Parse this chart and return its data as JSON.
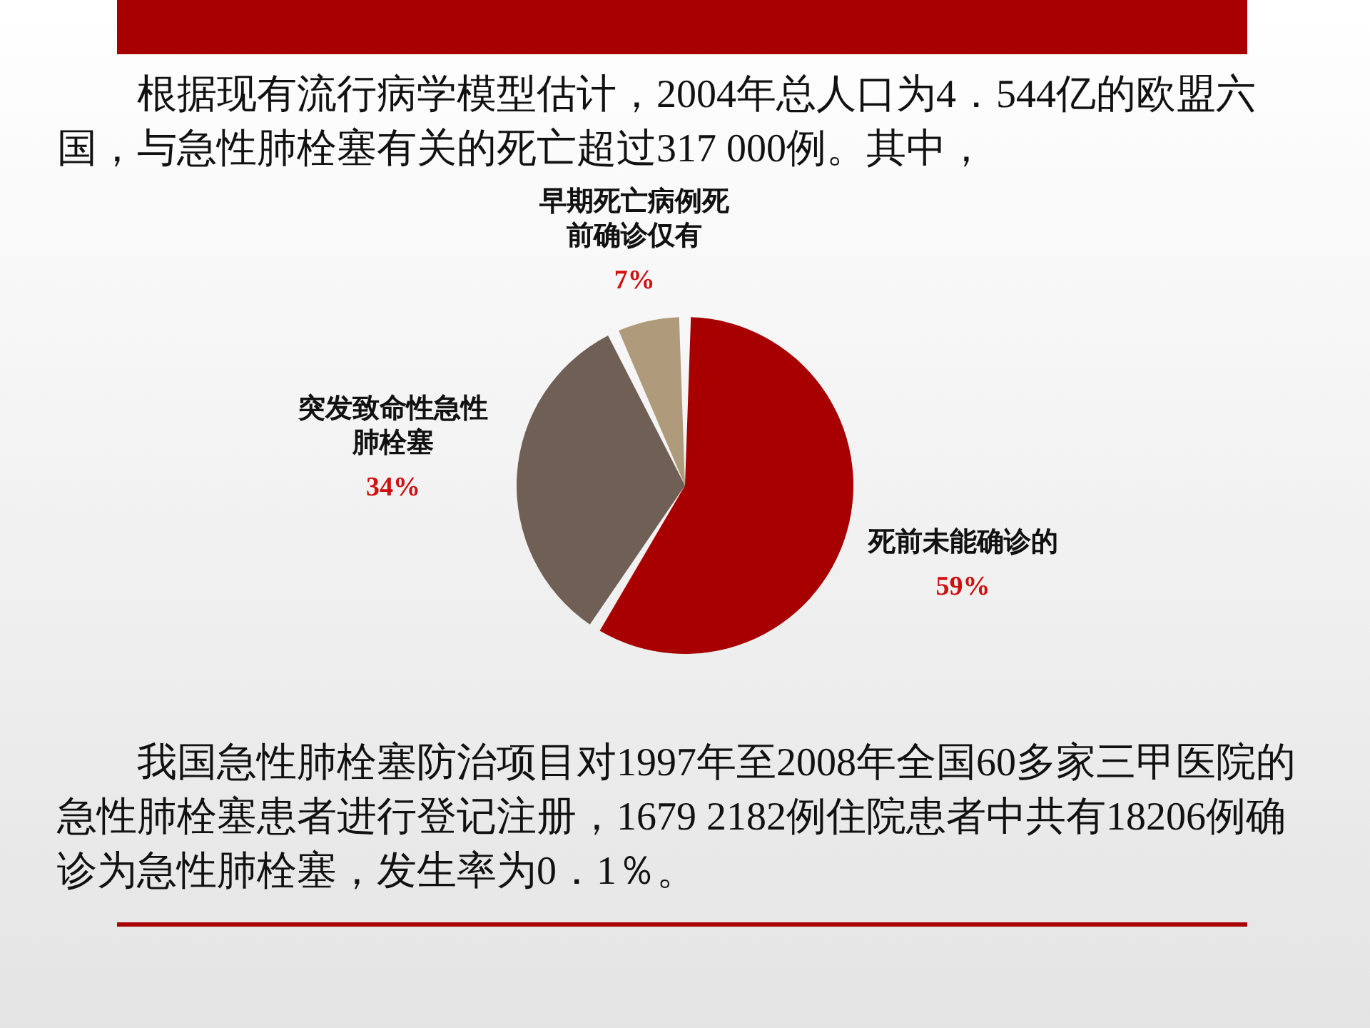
{
  "chart_data": {
    "type": "pie",
    "title": "根据现有流行病学模型估计，2004年总人口为4．544亿的欧盟六国，与急性肺栓塞有关的死亡超过317 000例。其中，",
    "categories": [
      "死前未能确诊的",
      "突发致命性急性肺栓塞",
      "早期死亡病例死前确诊仅有"
    ],
    "values": [
      59,
      34,
      7
    ],
    "colors": [
      "#a80000",
      "#6f5f55",
      "#b09a7c"
    ],
    "value_labels": [
      "59%",
      "34%",
      "7%"
    ],
    "annotations": [
      "我国急性肺栓塞防治项目对1997年至2008年全国60多家三甲医院的急性肺栓塞患者进行登记注册，1679 2182例住院患者中共有18206例确诊为急性肺栓塞，发生率为0．1％。"
    ]
  }
}
